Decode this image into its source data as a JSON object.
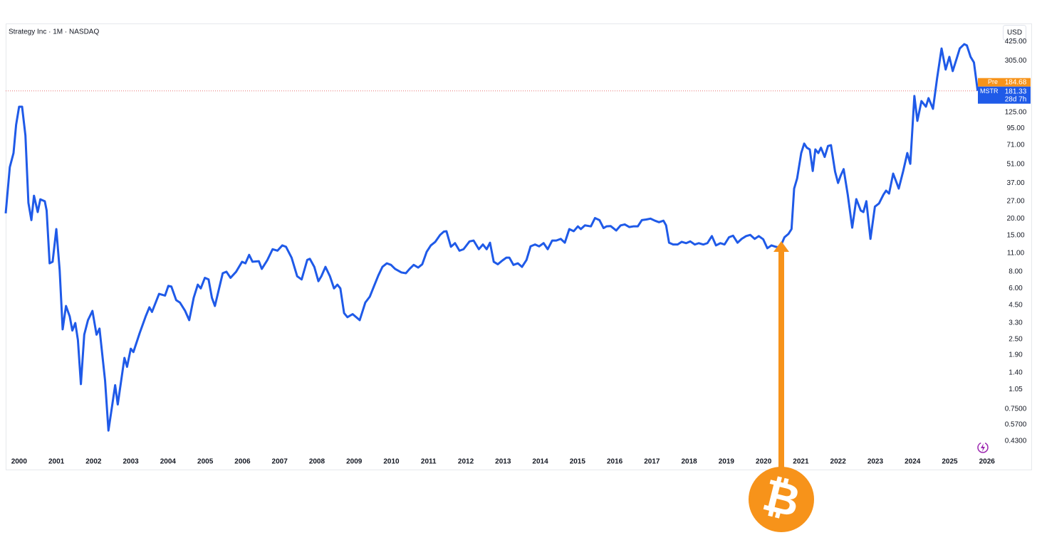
{
  "chart_data": {
    "type": "line",
    "title": "Strategy Inc · 1M · NASDAQ",
    "currency": "USD",
    "log_scale": true,
    "grid": false,
    "x": [
      1999.64,
      1999.75,
      1999.85,
      1999.92,
      2000.0,
      2000.08,
      2000.17,
      2000.25,
      2000.33,
      2000.4,
      2000.5,
      2000.57,
      2000.69,
      2000.74,
      2000.82,
      2000.9,
      2001.0,
      2001.09,
      2001.17,
      2001.26,
      2001.36,
      2001.43,
      2001.51,
      2001.58,
      2001.66,
      2001.75,
      2001.85,
      2001.97,
      2002.08,
      2002.16,
      2002.31,
      2002.4,
      2002.5,
      2002.58,
      2002.65,
      2002.83,
      2002.9,
      2003.0,
      2003.07,
      2003.24,
      2003.4,
      2003.5,
      2003.57,
      2003.76,
      2003.92,
      2004.01,
      2004.09,
      2004.22,
      2004.32,
      2004.46,
      2004.57,
      2004.69,
      2004.8,
      2004.88,
      2004.99,
      2005.09,
      2005.18,
      2005.26,
      2005.36,
      2005.47,
      2005.57,
      2005.68,
      2005.83,
      2005.99,
      2006.08,
      2006.18,
      2006.27,
      2006.44,
      2006.52,
      2006.67,
      2006.81,
      2006.94,
      2007.07,
      2007.17,
      2007.32,
      2007.47,
      2007.59,
      2007.74,
      2007.81,
      2007.93,
      2008.04,
      2008.12,
      2008.23,
      2008.35,
      2008.46,
      2008.55,
      2008.63,
      2008.73,
      2008.82,
      2008.96,
      2009.15,
      2009.3,
      2009.42,
      2009.53,
      2009.65,
      2009.76,
      2009.88,
      2009.99,
      2010.1,
      2010.27,
      2010.39,
      2010.49,
      2010.6,
      2010.72,
      2010.83,
      2010.95,
      2011.06,
      2011.18,
      2011.31,
      2011.41,
      2011.48,
      2011.6,
      2011.71,
      2011.83,
      2011.94,
      2012.1,
      2012.21,
      2012.35,
      2012.46,
      2012.56,
      2012.65,
      2012.75,
      2012.86,
      2012.98,
      2013.09,
      2013.17,
      2013.28,
      2013.4,
      2013.51,
      2013.63,
      2013.74,
      2013.86,
      2013.97,
      2014.09,
      2014.2,
      2014.32,
      2014.43,
      2014.55,
      2014.66,
      2014.78,
      2014.9,
      2015.01,
      2015.09,
      2015.2,
      2015.36,
      2015.47,
      2015.59,
      2015.7,
      2015.78,
      2015.89,
      2016.04,
      2016.16,
      2016.27,
      2016.39,
      2016.5,
      2016.62,
      2016.73,
      2016.85,
      2016.96,
      2017.08,
      2017.19,
      2017.31,
      2017.38,
      2017.46,
      2017.57,
      2017.69,
      2017.8,
      2017.92,
      2018.03,
      2018.15,
      2018.26,
      2018.38,
      2018.49,
      2018.61,
      2018.72,
      2018.84,
      2018.95,
      2019.07,
      2019.18,
      2019.3,
      2019.41,
      2019.53,
      2019.64,
      2019.76,
      2019.87,
      2019.99,
      2020.1,
      2020.21,
      2020.33,
      2020.44,
      2020.56,
      2020.67,
      2020.75,
      2020.82,
      2020.9,
      2021.01,
      2021.09,
      2021.16,
      2021.24,
      2021.32,
      2021.39,
      2021.47,
      2021.54,
      2021.64,
      2021.73,
      2021.81,
      2021.92,
      2022.0,
      2022.07,
      2022.15,
      2022.26,
      2022.38,
      2022.49,
      2022.61,
      2022.68,
      2022.76,
      2022.87,
      2022.99,
      2023.1,
      2023.22,
      2023.29,
      2023.37,
      2023.48,
      2023.56,
      2023.63,
      2023.75,
      2023.86,
      2023.94,
      2024.05,
      2024.13,
      2024.24,
      2024.36,
      2024.43,
      2024.55,
      2024.66,
      2024.78,
      2024.89,
      2024.99,
      2025.08,
      2025.2,
      2025.27,
      2025.39,
      2025.46,
      2025.56,
      2025.65,
      2025.75
    ],
    "series": [
      {
        "name": "MSTR",
        "color": "#1f5ae8",
        "values": [
          21.9,
          48.6,
          62,
          101,
          138,
          138,
          84,
          26.3,
          19.5,
          29.7,
          22.4,
          27.9,
          27,
          23,
          9.25,
          9.5,
          16.7,
          8.2,
          2.96,
          4.43,
          3.7,
          2.9,
          3.3,
          2.46,
          1.15,
          2.7,
          3.47,
          4.07,
          2.7,
          3.0,
          1.22,
          0.516,
          0.795,
          1.13,
          0.81,
          1.81,
          1.55,
          2.12,
          2.0,
          2.78,
          3.7,
          4.33,
          4.0,
          5.46,
          5.3,
          6.27,
          6.2,
          4.9,
          4.7,
          4.07,
          3.47,
          5.1,
          6.4,
          6.0,
          7.2,
          7.0,
          5.1,
          4.43,
          5.8,
          7.8,
          8.0,
          7.2,
          8.0,
          9.5,
          9.25,
          10.7,
          9.5,
          9.6,
          8.4,
          9.8,
          11.8,
          11.5,
          12.6,
          12.3,
          10.2,
          7.4,
          7.0,
          9.8,
          10.0,
          8.7,
          6.8,
          7.4,
          8.7,
          7.4,
          6.0,
          6.4,
          6.0,
          3.92,
          3.65,
          3.85,
          3.47,
          4.7,
          5.2,
          6.2,
          7.5,
          8.7,
          9.25,
          9.0,
          8.4,
          7.9,
          7.8,
          8.4,
          9.0,
          8.6,
          9.1,
          11.3,
          12.6,
          13.4,
          15.1,
          16,
          16.1,
          12.3,
          13.1,
          11.5,
          11.8,
          13.5,
          13.7,
          11.8,
          12.8,
          11.8,
          13.2,
          9.5,
          9.1,
          9.7,
          10.2,
          10.2,
          9.0,
          9.25,
          8.7,
          9.8,
          12.4,
          12.8,
          12.4,
          13.1,
          11.8,
          13.7,
          13.7,
          14.1,
          13.2,
          16.7,
          16.1,
          17.5,
          16.7,
          17.8,
          17.5,
          20.2,
          19.5,
          17,
          17.5,
          17.6,
          16.3,
          17.8,
          18.1,
          17.3,
          17.5,
          17.5,
          19.5,
          19.7,
          20.0,
          19.3,
          18.8,
          19.3,
          17.8,
          13.2,
          12.8,
          12.8,
          13.4,
          13.1,
          13.5,
          12.8,
          13.1,
          12.8,
          13.1,
          14.8,
          12.6,
          13.1,
          12.8,
          14.5,
          14.9,
          13.2,
          14.1,
          14.8,
          15.1,
          14.1,
          14.8,
          14.0,
          12.0,
          12.6,
          12.3,
          12.1,
          14.5,
          15.4,
          16.7,
          33.6,
          40,
          62,
          73,
          68,
          66,
          45.5,
          66,
          62,
          68,
          58,
          70,
          71,
          45,
          37,
          42,
          47,
          30.3,
          17.1,
          28.0,
          23,
          22.4,
          27,
          14.1,
          24.6,
          26,
          30.3,
          32.4,
          30.8,
          43.5,
          38,
          33.6,
          45.5,
          62,
          51.5,
          166,
          108,
          152,
          138,
          160,
          133,
          225,
          377,
          262,
          326,
          255,
          326,
          377,
          406,
          397,
          326,
          296,
          181.33
        ]
      }
    ],
    "xlim": [
      1999.64,
      2026.33
    ],
    "xticks": [
      2000,
      2001,
      2002,
      2003,
      2004,
      2005,
      2006,
      2007,
      2008,
      2009,
      2010,
      2011,
      2012,
      2013,
      2014,
      2015,
      2016,
      2017,
      2018,
      2019,
      2020,
      2021,
      2022,
      2023,
      2024,
      2025,
      2026
    ],
    "ylim": [
      0.345,
      580
    ],
    "yticks": [
      {
        "value": 425,
        "label": "425.00"
      },
      {
        "value": 305,
        "label": "305.00"
      },
      {
        "value": 125,
        "label": "125.00"
      },
      {
        "value": 95,
        "label": "95.00"
      },
      {
        "value": 71,
        "label": "71.00"
      },
      {
        "value": 51,
        "label": "51.00"
      },
      {
        "value": 37,
        "label": "37.00"
      },
      {
        "value": 27,
        "label": "27.00"
      },
      {
        "value": 20,
        "label": "20.00"
      },
      {
        "value": 15,
        "label": "15.00"
      },
      {
        "value": 11,
        "label": "11.00"
      },
      {
        "value": 8,
        "label": "8.00"
      },
      {
        "value": 6,
        "label": "6.00"
      },
      {
        "value": 4.5,
        "label": "4.50"
      },
      {
        "value": 3.3,
        "label": "3.30"
      },
      {
        "value": 2.5,
        "label": "2.50"
      },
      {
        "value": 1.9,
        "label": "1.90"
      },
      {
        "value": 1.4,
        "label": "1.40"
      },
      {
        "value": 1.05,
        "label": "1.05"
      },
      {
        "value": 0.75,
        "label": "0.7500"
      },
      {
        "value": 0.57,
        "label": "0.5700"
      },
      {
        "value": 0.43,
        "label": "0.4300"
      }
    ],
    "pre_market": {
      "label": "Pre",
      "price": 184.68,
      "color": "#f7931a"
    },
    "last_price": 181.33,
    "countdown": "28d 7h",
    "annotation": "₿"
  }
}
